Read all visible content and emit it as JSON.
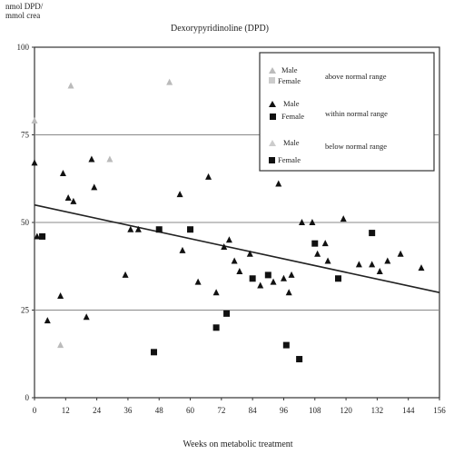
{
  "chart_data": {
    "type": "scatter",
    "title": "Dexorypyridinoline (DPD)",
    "ylabel_lines": [
      "nmol DPD/",
      "mmol crea"
    ],
    "xlabel": "Weeks on metabolic treatment",
    "xlim": [
      0,
      156
    ],
    "ylim": [
      0,
      100
    ],
    "x_ticks": [
      0,
      12,
      24,
      36,
      48,
      60,
      72,
      84,
      96,
      108,
      120,
      132,
      144,
      156
    ],
    "y_ticks": [
      0,
      25,
      50,
      75,
      100
    ],
    "reference_lines": [
      25,
      50,
      75
    ],
    "grid": false,
    "legend_position": "top-right",
    "legend": [
      {
        "range": "above normal range",
        "male": "Male",
        "female": "Female"
      },
      {
        "range": "within normal range",
        "male": "Male",
        "female": "Female"
      },
      {
        "range": "below normal range",
        "male": "Male",
        "female": "Female"
      }
    ],
    "series": [
      {
        "category": "above",
        "sex": "male",
        "points": [
          [
            0,
            79
          ],
          [
            14,
            89
          ],
          [
            29,
            68
          ],
          [
            52,
            90
          ],
          [
            10,
            15
          ]
        ]
      },
      {
        "category": "within",
        "sex": "male",
        "points": [
          [
            0,
            67
          ],
          [
            11,
            64
          ],
          [
            13,
            57
          ],
          [
            15,
            56
          ],
          [
            22,
            68
          ],
          [
            23,
            60
          ],
          [
            37,
            48
          ],
          [
            40,
            48
          ],
          [
            56,
            58
          ],
          [
            67,
            63
          ],
          [
            73,
            43
          ],
          [
            83,
            41
          ],
          [
            94,
            61
          ],
          [
            99,
            35
          ],
          [
            103,
            50
          ],
          [
            107,
            50
          ],
          [
            112,
            44
          ],
          [
            119,
            51
          ],
          [
            130,
            38
          ],
          [
            136,
            39
          ],
          [
            141,
            41
          ],
          [
            149,
            37
          ],
          [
            1,
            46
          ],
          [
            5,
            22
          ],
          [
            10,
            29
          ],
          [
            20,
            23
          ],
          [
            35,
            35
          ],
          [
            57,
            42
          ],
          [
            63,
            33
          ],
          [
            70,
            30
          ],
          [
            75,
            45
          ],
          [
            77,
            39
          ],
          [
            79,
            36
          ],
          [
            87,
            32
          ],
          [
            92,
            33
          ],
          [
            96,
            34
          ],
          [
            98,
            30
          ],
          [
            109,
            41
          ],
          [
            113,
            39
          ],
          [
            125,
            38
          ],
          [
            133,
            36
          ]
        ]
      },
      {
        "category": "within",
        "sex": "female",
        "points": [
          [
            3,
            46
          ],
          [
            48,
            48
          ],
          [
            70,
            20
          ],
          [
            74,
            24
          ],
          [
            90,
            35
          ],
          [
            108,
            44
          ],
          [
            117,
            34
          ],
          [
            130,
            47
          ],
          [
            60,
            48
          ],
          [
            84,
            34
          ]
        ]
      },
      {
        "category": "below",
        "sex": "female",
        "points": [
          [
            46,
            13
          ],
          [
            97,
            15
          ],
          [
            102,
            11
          ]
        ]
      }
    ],
    "trendline": {
      "x": [
        0,
        156
      ],
      "y": [
        55,
        30
      ]
    }
  }
}
